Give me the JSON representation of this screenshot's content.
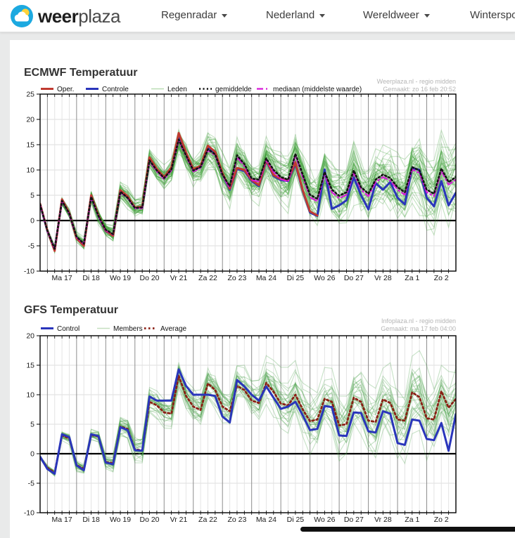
{
  "header": {
    "brand_bold": "weer",
    "brand_light": "plaza",
    "logo_colors": {
      "circle": "#1ca9e0",
      "sun": "#fdd23a",
      "cloud": "#ffffff"
    },
    "nav": [
      {
        "label": "Regenradar"
      },
      {
        "label": "Nederland"
      },
      {
        "label": "Wereldweer"
      },
      {
        "label": "Wintersport"
      }
    ]
  },
  "chart_data": [
    {
      "type": "line",
      "title": "ECMWF Temperatuur",
      "source": [
        "Weerplaza.nl - regio midden",
        "Gemaakt: zo 16 feb 20:52"
      ],
      "ylim": [
        -10,
        25
      ],
      "yticks": [
        -10,
        -5,
        0,
        5,
        10,
        15,
        20,
        25
      ],
      "x_labels": [
        "Ma 17",
        "Di 18",
        "Wo 19",
        "Do 20",
        "Vr 21",
        "Za 22",
        "Zo 23",
        "Ma 24",
        "Di 25",
        "Wo 26",
        "Do 27",
        "Vr 28",
        "Za 1",
        "Zo 2"
      ],
      "step_hours": 6,
      "points_per_day": 4,
      "legend": [
        {
          "label": "Oper.",
          "color": "#c03a30",
          "width": 3,
          "dash": ""
        },
        {
          "label": "Controle",
          "color": "#2a35bb",
          "width": 3,
          "dash": ""
        },
        {
          "label": "Leden",
          "color": "#b9dcb4",
          "width": 1.5,
          "dash": ""
        },
        {
          "label": "gemiddelde",
          "color": "#141414",
          "width": 2.6,
          "dash": "2.2 3.2"
        },
        {
          "label": "mediaan (middelste waarde)",
          "color": "#d819d8",
          "width": 2.2,
          "dash": "9 4 2 4"
        }
      ],
      "series": [
        {
          "name": "Controle",
          "color": "#2a35bb",
          "width": 3,
          "dash": "",
          "values": [
            3.2,
            -2.1,
            -5.8,
            4.0,
            1.4,
            -3.4,
            -4.8,
            4.8,
            0.9,
            -2.1,
            -2.9,
            5.8,
            4.6,
            2.5,
            2.6,
            12.2,
            10.0,
            8.4,
            10.2,
            16.9,
            13.2,
            10.0,
            10.6,
            14.5,
            13.3,
            9.2,
            6.1,
            10.2,
            9.8,
            7.8,
            6.8,
            11.8,
            8.8,
            8.0,
            7.8,
            11.2,
            5.8,
            1.6,
            0.9,
            10.1,
            2.3,
            3.0,
            4.0,
            8.5,
            5.0,
            2.2,
            7.4,
            6.1,
            7.6,
            4.5,
            3.2,
            10.4,
            10.0,
            4.5,
            2.8,
            7.8,
            3.0,
            5.5
          ]
        },
        {
          "name": "Oper.",
          "color": "#c03a30",
          "width": 3,
          "dash": "",
          "values": [
            3.3,
            -2.0,
            -6.0,
            4.2,
            1.5,
            -3.5,
            -5.0,
            5.0,
            1.0,
            -2.0,
            -3.0,
            6.0,
            4.8,
            2.6,
            2.7,
            12.5,
            10.2,
            8.6,
            10.5,
            17.3,
            13.5,
            10.2,
            10.8,
            14.8,
            13.6,
            9.4,
            6.3,
            10.4,
            10.0,
            8.0,
            7.0,
            12.0,
            9.0,
            8.2,
            8.0,
            11.5,
            6.0,
            1.8,
            1.0,
            null,
            null,
            null,
            null,
            null,
            null,
            null,
            null,
            null,
            null,
            null,
            null,
            null,
            null,
            null,
            null,
            null,
            null,
            null
          ]
        },
        {
          "name": "mediaan (middelste waarde)",
          "color": "#d819d8",
          "width": 2.2,
          "dash": "9 4 2 4",
          "values": [
            3.2,
            -2.1,
            -5.7,
            3.8,
            1.3,
            -3.3,
            -4.7,
            4.6,
            0.8,
            -1.9,
            -2.8,
            5.6,
            4.4,
            2.4,
            2.4,
            11.7,
            9.7,
            8.2,
            9.9,
            15.8,
            12.7,
            9.7,
            10.4,
            13.9,
            12.9,
            8.9,
            6.5,
            12.5,
            10.8,
            8.0,
            7.7,
            12.0,
            9.6,
            8.2,
            7.7,
            12.8,
            8.6,
            4.6,
            3.8,
            9.2,
            5.6,
            4.4,
            5.1,
            9.4,
            6.1,
            4.8,
            7.6,
            8.6,
            7.9,
            6.1,
            5.1,
            10.1,
            9.4,
            5.6,
            4.8,
            9.8,
            7.1,
            8.1
          ]
        },
        {
          "name": "gemiddelde",
          "color": "#141414",
          "width": 2.6,
          "dash": "2.2 3.2",
          "values": [
            3.2,
            -2.0,
            -5.6,
            3.9,
            1.4,
            -3.2,
            -4.6,
            4.7,
            0.9,
            -1.8,
            -2.7,
            5.7,
            4.5,
            2.5,
            2.6,
            11.9,
            9.9,
            8.4,
            10.1,
            16.0,
            12.9,
            9.9,
            10.6,
            14.1,
            13.1,
            9.1,
            6.8,
            12.9,
            11.2,
            8.3,
            8.1,
            12.3,
            10.0,
            8.6,
            8.1,
            13.2,
            9.1,
            5.1,
            4.3,
            9.6,
            6.1,
            4.9,
            5.6,
            9.9,
            6.6,
            5.3,
            8.1,
            9.1,
            8.4,
            6.6,
            5.6,
            10.6,
            9.9,
            6.1,
            5.3,
            10.3,
            7.6,
            8.6
          ]
        }
      ],
      "members": {
        "label": "Leden",
        "count": 48,
        "color": "#3a9e35",
        "opacity": 0.3,
        "width": 1.1,
        "seed": 20250216,
        "base": "gemiddelde",
        "spread_start": 0.3,
        "spread_end": 3.8
      }
    },
    {
      "type": "line",
      "title": "GFS Temperatuur",
      "source": [
        "Infoplaza.nl - regio midden",
        "Gemaakt: ma 17 feb 04:00"
      ],
      "ylim": [
        -10,
        20
      ],
      "yticks": [
        -10,
        -5,
        0,
        5,
        10,
        15,
        20
      ],
      "x_labels": [
        "Ma 17",
        "Di 18",
        "Wo 19",
        "Do 20",
        "Vr 21",
        "Za 22",
        "Zo 23",
        "Ma 24",
        "Di 25",
        "Wo 26",
        "Do 27",
        "Vr 28",
        "Za 1",
        "Zo 2"
      ],
      "step_hours": 6,
      "points_per_day": 4,
      "legend": [
        {
          "label": "Control",
          "color": "#2a35bb",
          "width": 3,
          "dash": ""
        },
        {
          "label": "Members",
          "color": "#c5dfc0",
          "width": 1.5,
          "dash": ""
        },
        {
          "label": "Average",
          "color": "#8b2015",
          "width": 2.8,
          "dash": "2.5 3.5"
        }
      ],
      "series": [
        {
          "name": "Average",
          "color": "#8b2015",
          "width": 2.8,
          "dash": "2.5 3.5",
          "values": [
            -0.6,
            -2.4,
            -3.2,
            3.1,
            2.6,
            -1.9,
            -2.6,
            3.2,
            2.9,
            -1.4,
            -1.6,
            4.6,
            4.2,
            0.7,
            0.6,
            8.8,
            8.2,
            7.0,
            6.8,
            13.2,
            9.8,
            8.0,
            7.4,
            11.9,
            10.8,
            8.0,
            7.2,
            11.5,
            10.8,
            9.0,
            8.6,
            12.0,
            10.5,
            8.5,
            8.2,
            10.0,
            7.5,
            5.5,
            5.8,
            9.3,
            8.8,
            4.8,
            5.0,
            9.5,
            8.8,
            5.6,
            5.4,
            9.2,
            8.6,
            5.8,
            5.6,
            10.4,
            9.6,
            6.0,
            5.8,
            10.6,
            7.8,
            9.3
          ]
        },
        {
          "name": "Control",
          "color": "#2a35bb",
          "width": 3,
          "dash": "",
          "values": [
            -0.5,
            -2.6,
            -3.4,
            3.3,
            2.8,
            -2.0,
            -2.8,
            3.3,
            3.0,
            -1.5,
            -1.8,
            4.5,
            4.0,
            0.6,
            0.5,
            9.7,
            9.0,
            9.0,
            9.0,
            14.3,
            11.5,
            10.0,
            10.0,
            10.0,
            9.8,
            6.3,
            5.3,
            12.5,
            11.4,
            10.0,
            9.0,
            11.4,
            9.5,
            7.6,
            8.0,
            8.8,
            6.5,
            4.0,
            4.2,
            8.1,
            7.9,
            3.1,
            3.0,
            7.0,
            6.9,
            3.8,
            3.6,
            7.2,
            6.8,
            1.8,
            1.5,
            5.8,
            5.6,
            2.5,
            2.3,
            5.2,
            0.5,
            6.7
          ]
        }
      ],
      "members": {
        "label": "Members",
        "count": 30,
        "color": "#46a046",
        "opacity": 0.3,
        "width": 1.1,
        "seed": 777001,
        "base": "Average",
        "spread_start": 0.25,
        "spread_end": 3.4
      }
    }
  ]
}
